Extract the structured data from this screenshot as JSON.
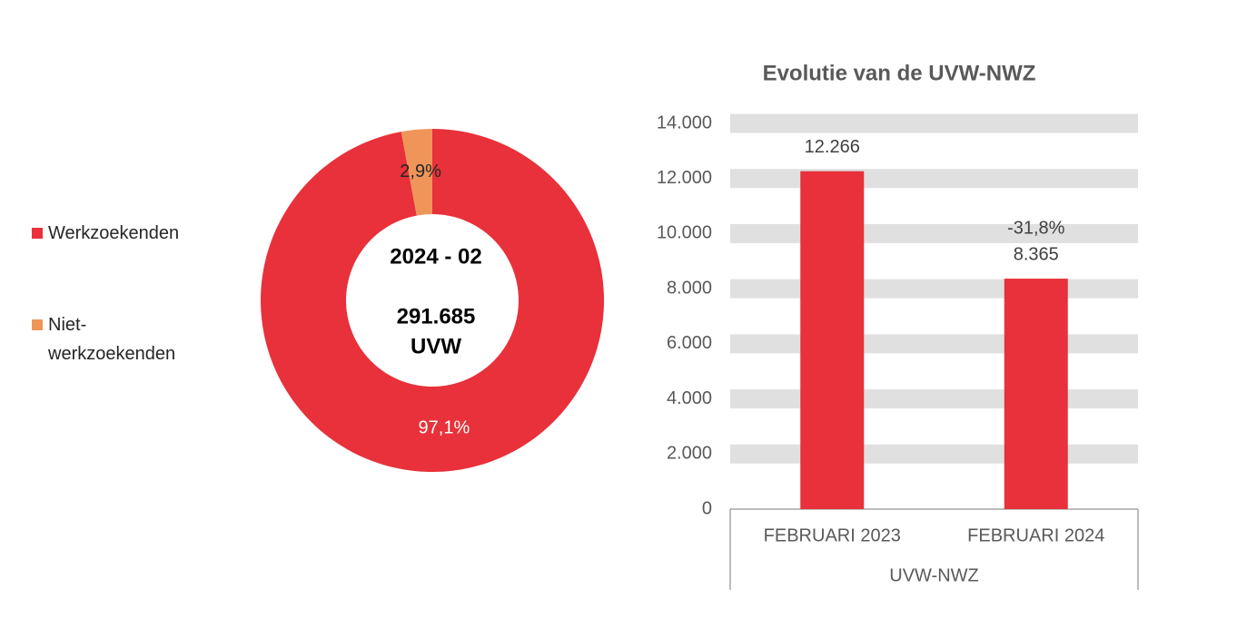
{
  "chart_data": [
    {
      "type": "donut",
      "center_text": [
        "2024 - 02",
        "291.685",
        "UVW"
      ],
      "categories": [
        "Werkzoekenden",
        "Niet-werkzoekenden"
      ],
      "values": [
        97.1,
        2.9
      ],
      "value_labels": [
        "97,1%",
        "2,9%"
      ],
      "colors": [
        "#e8313a",
        "#f0955a"
      ],
      "label_colors": [
        "#ffffff",
        "#262626"
      ]
    },
    {
      "type": "bar",
      "title": "Evolutie van de UVW-NWZ",
      "categories": [
        "FEBRUARI 2023",
        "FEBRUARI 2024"
      ],
      "group_label": "UVW-NWZ",
      "values": [
        12266,
        8365
      ],
      "value_labels": [
        "12.266",
        "8.365"
      ],
      "annotations": [
        null,
        "-31,8%"
      ],
      "color": "#e8313a",
      "ylim": [
        0,
        14000
      ],
      "yticks": [
        0,
        {
          "value": 2000,
          "label": "2.000"
        },
        {
          "value": 4000,
          "label": "4.000"
        },
        {
          "value": 6000,
          "label": "6.000"
        },
        {
          "value": 8000,
          "label": "8.000"
        },
        {
          "value": 10000,
          "label": "10.000"
        },
        {
          "value": 12000,
          "label": "12.000"
        },
        {
          "value": 14000,
          "label": "14.000"
        }
      ],
      "grid": "bands"
    }
  ]
}
